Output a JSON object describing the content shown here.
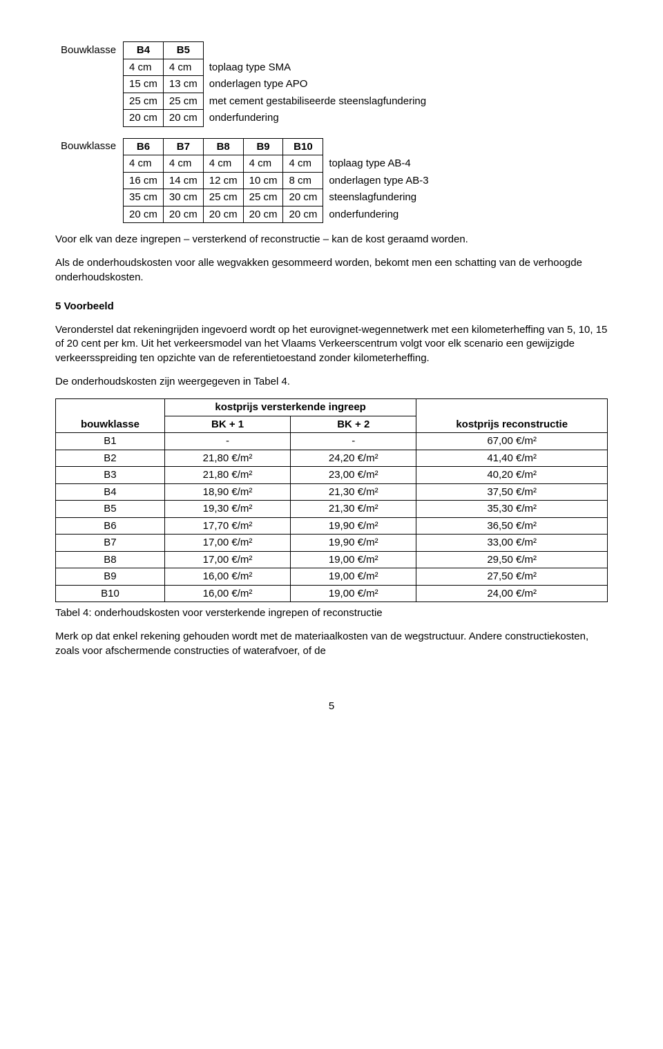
{
  "table1": {
    "label": "Bouwklasse",
    "headers": [
      "B4",
      "B5"
    ],
    "rows": [
      {
        "cells": [
          "4 cm",
          "4 cm"
        ],
        "desc": "toplaag type SMA"
      },
      {
        "cells": [
          "15 cm",
          "13 cm"
        ],
        "desc": "onderlagen type APO"
      },
      {
        "cells": [
          "25 cm",
          "25 cm"
        ],
        "desc": "met cement gestabiliseerde steenslagfundering"
      },
      {
        "cells": [
          "20 cm",
          "20 cm"
        ],
        "desc": "onderfundering"
      }
    ]
  },
  "table2": {
    "label": "Bouwklasse",
    "headers": [
      "B6",
      "B7",
      "B8",
      "B9",
      "B10"
    ],
    "rows": [
      {
        "cells": [
          "4 cm",
          "4 cm",
          "4 cm",
          "4 cm",
          "4 cm"
        ],
        "desc": "toplaag type AB-4"
      },
      {
        "cells": [
          "16 cm",
          "14 cm",
          "12 cm",
          "10 cm",
          "8 cm"
        ],
        "desc": "onderlagen type AB-3"
      },
      {
        "cells": [
          "35 cm",
          "30 cm",
          "25 cm",
          "25 cm",
          "20 cm"
        ],
        "desc": "steenslagfundering"
      },
      {
        "cells": [
          "20 cm",
          "20 cm",
          "20 cm",
          "20 cm",
          "20 cm"
        ],
        "desc": "onderfundering"
      }
    ]
  },
  "para1": "Voor elk van deze ingrepen – versterkend of reconstructie – kan de kost geraamd worden.",
  "para2": "Als de onderhoudskosten voor alle wegvakken gesommeerd worden, bekomt men een schatting van de verhoogde onderhoudskosten.",
  "section5_title": "5     Voorbeeld",
  "para3": "Veronderstel dat rekeningrijden ingevoerd wordt op het eurovignet-wegennetwerk met een kilometerheffing van 5, 10, 15 of 20 cent per km. Uit het verkeersmodel van het Vlaams Verkeerscentrum volgt voor elk scenario een gewijzigde verkeersspreiding ten opzichte van de referentietoestand zonder kilometerheffing.",
  "para4": "De onderhoudskosten zijn weergegeven in Tabel 4.",
  "cost_table": {
    "header1_span": "kostprijs versterkende ingreep",
    "header_bouwklasse": "bouwklasse",
    "header_bk1": "BK + 1",
    "header_bk2": "BK + 2",
    "header_recon": "kostprijs reconstructie",
    "rows": [
      {
        "k": "B1",
        "bk1": "-",
        "bk2": "-",
        "rec": "67,00 €/m²"
      },
      {
        "k": "B2",
        "bk1": "21,80 €/m²",
        "bk2": "24,20 €/m²",
        "rec": "41,40 €/m²"
      },
      {
        "k": "B3",
        "bk1": "21,80 €/m²",
        "bk2": "23,00 €/m²",
        "rec": "40,20 €/m²"
      },
      {
        "k": "B4",
        "bk1": "18,90 €/m²",
        "bk2": "21,30 €/m²",
        "rec": "37,50 €/m²"
      },
      {
        "k": "B5",
        "bk1": "19,30 €/m²",
        "bk2": "21,30 €/m²",
        "rec": "35,30 €/m²"
      },
      {
        "k": "B6",
        "bk1": "17,70 €/m²",
        "bk2": "19,90 €/m²",
        "rec": "36,50 €/m²"
      },
      {
        "k": "B7",
        "bk1": "17,00 €/m²",
        "bk2": "19,90 €/m²",
        "rec": "33,00 €/m²"
      },
      {
        "k": "B8",
        "bk1": "17,00 €/m²",
        "bk2": "19,00 €/m²",
        "rec": "29,50 €/m²"
      },
      {
        "k": "B9",
        "bk1": "16,00 €/m²",
        "bk2": "19,00 €/m²",
        "rec": "27,50 €/m²"
      },
      {
        "k": "B10",
        "bk1": "16,00 €/m²",
        "bk2": "19,00 €/m²",
        "rec": "24,00 €/m²"
      }
    ]
  },
  "table4_caption": "Tabel 4: onderhoudskosten voor versterkende ingrepen of reconstructie",
  "para5": "Merk op dat enkel rekening gehouden wordt met de materiaalkosten van de wegstructuur. Andere constructiekosten, zoals voor afschermende constructies of waterafvoer, of de",
  "page_number": "5"
}
